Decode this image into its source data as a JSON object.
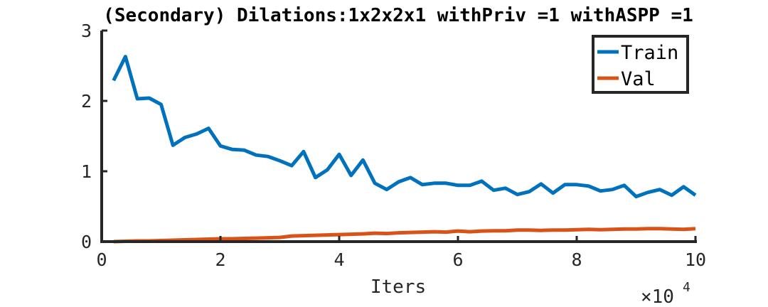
{
  "chart_data": {
    "type": "line",
    "title": "(Secondary) Dilations:1x2x2x1 withPriv =1 withASPP =1",
    "xlabel": "Iters",
    "ylabel": "",
    "x_exponent_label": "×10",
    "x_exponent_power": "4",
    "xlim": [
      0,
      10
    ],
    "ylim": [
      0,
      3
    ],
    "xticks": [
      0,
      2,
      4,
      6,
      8,
      10
    ],
    "xtick_labels": [
      "0",
      "2",
      "4",
      "6",
      "8",
      "10"
    ],
    "yticks": [
      0,
      1,
      2,
      3
    ],
    "ytick_labels": [
      "0",
      "1",
      "2",
      "3"
    ],
    "grid": false,
    "legend_position": "top-right",
    "series": [
      {
        "name": "Train",
        "color": "#0072BD",
        "x": [
          0.2,
          0.4,
          0.6,
          0.8,
          1.0,
          1.2,
          1.4,
          1.6,
          1.8,
          2.0,
          2.2,
          2.4,
          2.6,
          2.8,
          3.0,
          3.2,
          3.4,
          3.6,
          3.8,
          4.0,
          4.2,
          4.4,
          4.6,
          4.8,
          5.0,
          5.2,
          5.4,
          5.6,
          5.8,
          6.0,
          6.2,
          6.4,
          6.6,
          6.8,
          7.0,
          7.2,
          7.4,
          7.6,
          7.8,
          8.0,
          8.2,
          8.4,
          8.6,
          8.8,
          9.0,
          9.2,
          9.4,
          9.6,
          9.8,
          10.0
        ],
        "values": [
          2.29,
          2.63,
          2.03,
          2.04,
          1.95,
          1.37,
          1.48,
          1.53,
          1.61,
          1.36,
          1.31,
          1.3,
          1.23,
          1.21,
          1.15,
          1.08,
          1.28,
          0.91,
          1.02,
          1.24,
          0.94,
          1.16,
          0.83,
          0.74,
          0.85,
          0.91,
          0.81,
          0.83,
          0.83,
          0.8,
          0.8,
          0.86,
          0.73,
          0.76,
          0.67,
          0.71,
          0.82,
          0.69,
          0.81,
          0.81,
          0.79,
          0.72,
          0.74,
          0.8,
          0.64,
          0.7,
          0.74,
          0.66,
          0.78,
          0.66
        ]
      },
      {
        "name": "Val",
        "color": "#D95319",
        "x": [
          0.2,
          0.4,
          0.6,
          0.8,
          1.0,
          1.2,
          1.4,
          1.6,
          1.8,
          2.0,
          2.2,
          2.4,
          2.6,
          2.8,
          3.0,
          3.2,
          3.4,
          3.6,
          3.8,
          4.0,
          4.2,
          4.4,
          4.6,
          4.8,
          5.0,
          5.2,
          5.4,
          5.6,
          5.8,
          6.0,
          6.2,
          6.4,
          6.6,
          6.8,
          7.0,
          7.2,
          7.4,
          7.6,
          7.8,
          8.0,
          8.2,
          8.4,
          8.6,
          8.8,
          9.0,
          9.2,
          9.4,
          9.6,
          9.8,
          10.0
        ],
        "values": [
          0.0,
          0.005,
          0.01,
          0.01,
          0.015,
          0.02,
          0.025,
          0.03,
          0.035,
          0.04,
          0.04,
          0.045,
          0.05,
          0.055,
          0.06,
          0.08,
          0.085,
          0.09,
          0.095,
          0.1,
          0.105,
          0.11,
          0.12,
          0.115,
          0.125,
          0.13,
          0.135,
          0.14,
          0.135,
          0.15,
          0.14,
          0.15,
          0.155,
          0.155,
          0.165,
          0.165,
          0.16,
          0.165,
          0.165,
          0.17,
          0.175,
          0.17,
          0.175,
          0.18,
          0.18,
          0.185,
          0.185,
          0.18,
          0.175,
          0.185
        ]
      }
    ]
  }
}
